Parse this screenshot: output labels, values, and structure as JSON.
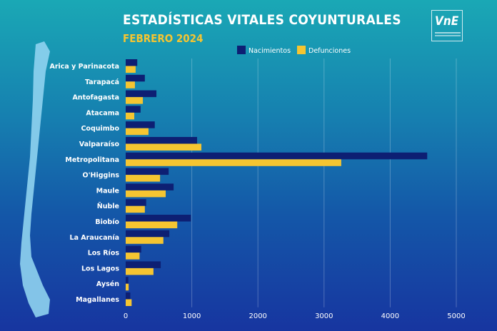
{
  "chart_data": {
    "type": "bar",
    "orientation": "horizontal",
    "title": "ESTADÍSTICAS VITALES COYUNTURALES",
    "subtitle": "FEBRERO 2024",
    "categories": [
      "Arica y Parinacota",
      "Tarapacá",
      "Antofagasta",
      "Atacama",
      "Coquimbo",
      "Valparaíso",
      "Metropolitana",
      "O'Higgins",
      "Maule",
      "Ñuble",
      "Biobío",
      "La Araucanía",
      "Los Ríos",
      "Los Lagos",
      "Aysén",
      "Magallanes"
    ],
    "series": [
      {
        "name": "Nacimientos",
        "color": "#0d1f73",
        "values": [
          175,
          290,
          465,
          225,
          440,
          1080,
          4560,
          650,
          725,
          310,
          985,
          660,
          235,
          530,
          40,
          70
        ]
      },
      {
        "name": "Defunciones",
        "color": "#f5c531",
        "values": [
          150,
          140,
          260,
          130,
          345,
          1145,
          3260,
          520,
          605,
          290,
          780,
          570,
          210,
          420,
          45,
          90
        ]
      }
    ],
    "xlim": [
      0,
      5000
    ],
    "xticks": [
      "0",
      "1000",
      "2000",
      "3000",
      "4000",
      "5000"
    ],
    "xlabel": "",
    "ylabel": "",
    "grid": "vertical",
    "legend": "top"
  },
  "logo": {
    "text": "INE"
  }
}
